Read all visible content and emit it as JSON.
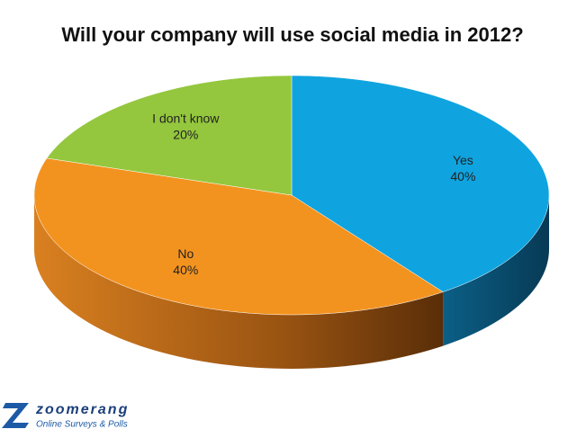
{
  "chart_data": {
    "type": "pie3d",
    "title": "Will your company will use social media in 2012?",
    "categories": [
      "Yes",
      "No",
      "I don't know"
    ],
    "values": [
      40,
      40,
      20
    ],
    "value_labels": [
      "40%",
      "40%",
      "20%"
    ],
    "colors": [
      "#0fa4df",
      "#f3931f",
      "#94c73d"
    ]
  },
  "logo": {
    "name": "zoomerang",
    "tagline": "Online Surveys & Polls"
  }
}
